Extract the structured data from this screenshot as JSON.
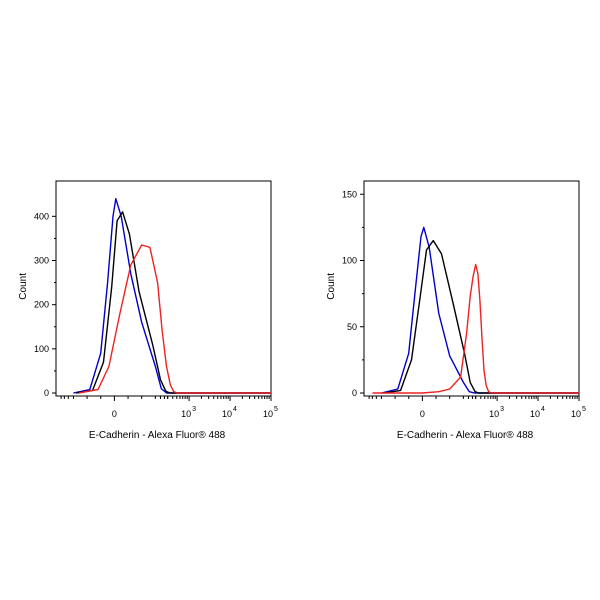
{
  "chart_data": [
    {
      "type": "line",
      "subtype": "flow-cytometry-histogram",
      "xlabel": "E-Cadherin - Alexa Fluor® 488",
      "ylabel": "Count",
      "x_scale": "biexponential",
      "x_ticks": [
        {
          "value": 0,
          "base": "0",
          "exp": ""
        },
        {
          "value": 1000,
          "base": "10",
          "exp": "3"
        },
        {
          "value": 10000,
          "base": "10",
          "exp": "4"
        },
        {
          "value": 100000,
          "base": "10",
          "exp": "5"
        }
      ],
      "ylim": [
        0,
        480
      ],
      "y_ticks": [
        "0",
        "100",
        "200",
        "300",
        "400"
      ],
      "grid": false,
      "series": [
        {
          "color": "#0000cc",
          "points": [
            [
              -150,
              0
            ],
            [
              -90,
              8
            ],
            [
              -50,
              90
            ],
            [
              -25,
              250
            ],
            [
              -5,
              400
            ],
            [
              5,
              440
            ],
            [
              25,
              400
            ],
            [
              60,
              270
            ],
            [
              100,
              160
            ],
            [
              150,
              60
            ],
            [
              210,
              10
            ],
            [
              280,
              0
            ],
            [
              100000,
              0
            ]
          ]
        },
        {
          "color": "#000000",
          "points": [
            [
              -140,
              0
            ],
            [
              -80,
              6
            ],
            [
              -40,
              70
            ],
            [
              -10,
              240
            ],
            [
              10,
              390
            ],
            [
              30,
              410
            ],
            [
              55,
              360
            ],
            [
              90,
              230
            ],
            [
              140,
              110
            ],
            [
              200,
              30
            ],
            [
              270,
              4
            ],
            [
              340,
              0
            ],
            [
              100000,
              0
            ]
          ]
        },
        {
          "color": "#ee2222",
          "points": [
            [
              -130,
              0
            ],
            [
              -60,
              8
            ],
            [
              -20,
              60
            ],
            [
              20,
              180
            ],
            [
              60,
              290
            ],
            [
              100,
              335
            ],
            [
              130,
              330
            ],
            [
              170,
              250
            ],
            [
              220,
              140
            ],
            [
              280,
              60
            ],
            [
              350,
              18
            ],
            [
              420,
              3
            ],
            [
              520,
              0
            ],
            [
              100000,
              0
            ]
          ]
        }
      ]
    },
    {
      "type": "line",
      "subtype": "flow-cytometry-histogram",
      "xlabel": "E-Cadherin - Alexa Fluor® 488",
      "ylabel": "Count",
      "x_scale": "biexponential",
      "x_ticks": [
        {
          "value": 0,
          "base": "0",
          "exp": ""
        },
        {
          "value": 1000,
          "base": "10",
          "exp": "3"
        },
        {
          "value": 10000,
          "base": "10",
          "exp": "4"
        },
        {
          "value": 100000,
          "base": "10",
          "exp": "5"
        }
      ],
      "ylim": [
        0,
        160
      ],
      "y_ticks": [
        "0",
        "50",
        "100",
        "150"
      ],
      "grid": false,
      "series": [
        {
          "color": "#0000cc",
          "points": [
            [
              -150,
              0
            ],
            [
              -90,
              3
            ],
            [
              -50,
              30
            ],
            [
              -25,
              80
            ],
            [
              -5,
              118
            ],
            [
              5,
              125
            ],
            [
              25,
              110
            ],
            [
              60,
              60
            ],
            [
              100,
              28
            ],
            [
              150,
              8
            ],
            [
              210,
              1
            ],
            [
              280,
              0
            ],
            [
              100000,
              0
            ]
          ]
        },
        {
          "color": "#000000",
          "points": [
            [
              -140,
              0
            ],
            [
              -80,
              2
            ],
            [
              -40,
              25
            ],
            [
              -10,
              70
            ],
            [
              15,
              108
            ],
            [
              40,
              115
            ],
            [
              70,
              105
            ],
            [
              110,
              70
            ],
            [
              160,
              30
            ],
            [
              220,
              8
            ],
            [
              290,
              1
            ],
            [
              360,
              0
            ],
            [
              100000,
              0
            ]
          ]
        },
        {
          "color": "#ee2222",
          "points": [
            [
              -250,
              0
            ],
            [
              0,
              0
            ],
            [
              60,
              1
            ],
            [
              100,
              3
            ],
            [
              140,
              12
            ],
            [
              180,
              45
            ],
            [
              220,
              73
            ],
            [
              260,
              88
            ],
            [
              300,
              97
            ],
            [
              340,
              90
            ],
            [
              380,
              70
            ],
            [
              430,
              40
            ],
            [
              480,
              17
            ],
            [
              540,
              6
            ],
            [
              620,
              1
            ],
            [
              720,
              0
            ],
            [
              100000,
              0
            ]
          ]
        }
      ]
    }
  ]
}
